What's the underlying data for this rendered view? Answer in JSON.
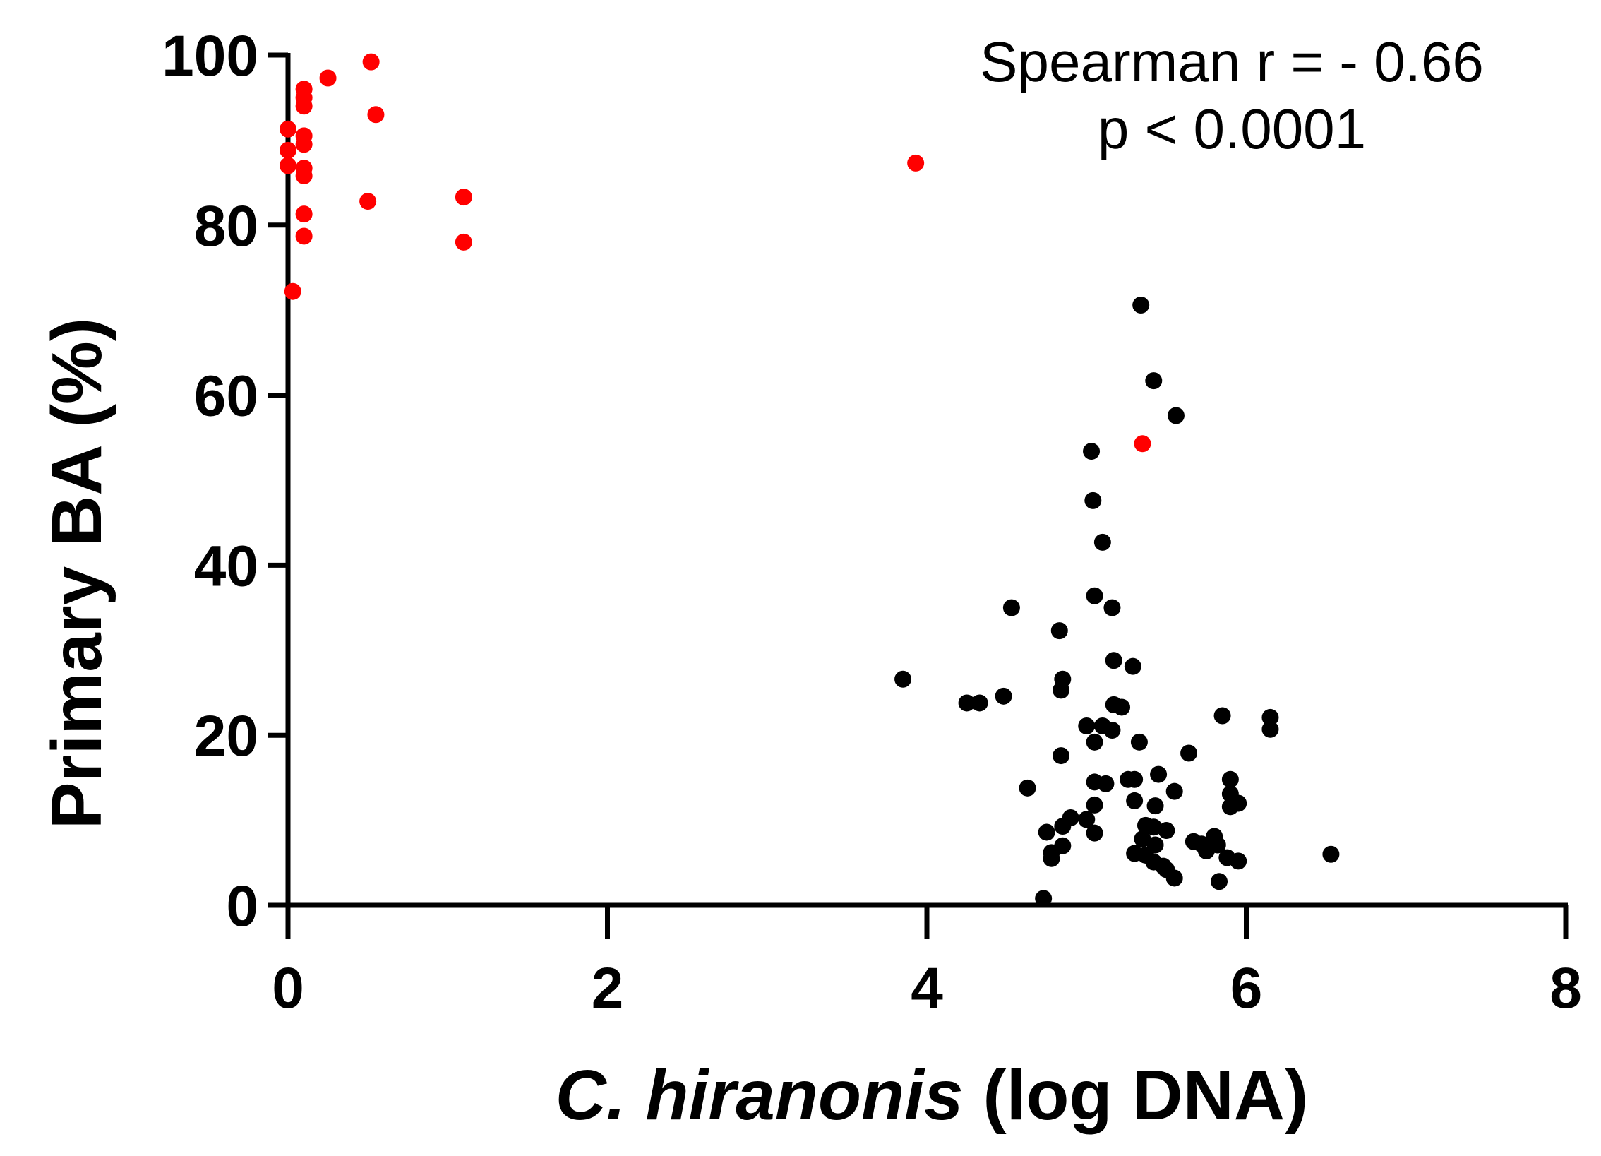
{
  "chart_data": {
    "type": "scatter",
    "title": "",
    "xlabel_italic": "C. hiranonis",
    "xlabel_rest": " (log DNA)",
    "ylabel": "Primary BA (%)",
    "xlim": [
      0,
      8
    ],
    "ylim": [
      0,
      100
    ],
    "xticks": [
      0,
      2,
      4,
      6,
      8
    ],
    "yticks": [
      0,
      20,
      40,
      60,
      80,
      100
    ],
    "grid": false,
    "colors": {
      "axis": "#000000",
      "red_series": "#ff0000",
      "black_series": "#000000"
    },
    "annotation": {
      "line1": "Spearman r = - 0.66",
      "line2": "p < 0.0001"
    },
    "series": [
      {
        "name": "red",
        "color": "#ff0000",
        "points": [
          [
            0.52,
            99.2
          ],
          [
            0.1,
            96.0
          ],
          [
            0.25,
            97.3
          ],
          [
            0.1,
            95.0
          ],
          [
            0.1,
            94.0
          ],
          [
            0.55,
            93.0
          ],
          [
            0.0,
            91.3
          ],
          [
            0.1,
            90.5
          ],
          [
            0.1,
            89.5
          ],
          [
            0.0,
            88.8
          ],
          [
            0.0,
            87.0
          ],
          [
            0.1,
            86.7
          ],
          [
            0.1,
            85.8
          ],
          [
            1.1,
            83.3
          ],
          [
            0.5,
            82.8
          ],
          [
            0.1,
            81.3
          ],
          [
            0.1,
            78.7
          ],
          [
            1.1,
            78.0
          ],
          [
            0.03,
            72.2
          ],
          [
            3.93,
            87.3
          ],
          [
            5.35,
            54.3
          ]
        ]
      },
      {
        "name": "black",
        "color": "#000000",
        "points": [
          [
            5.34,
            70.6
          ],
          [
            5.42,
            61.7
          ],
          [
            5.56,
            57.6
          ],
          [
            5.03,
            53.4
          ],
          [
            5.04,
            47.6
          ],
          [
            5.1,
            42.7
          ],
          [
            5.05,
            36.4
          ],
          [
            4.53,
            35.0
          ],
          [
            5.16,
            35.0
          ],
          [
            4.83,
            32.3
          ],
          [
            5.17,
            28.8
          ],
          [
            5.29,
            28.1
          ],
          [
            3.85,
            26.6
          ],
          [
            4.85,
            26.6
          ],
          [
            4.84,
            25.3
          ],
          [
            4.48,
            24.6
          ],
          [
            4.25,
            23.8
          ],
          [
            4.33,
            23.8
          ],
          [
            5.17,
            23.6
          ],
          [
            5.22,
            23.3
          ],
          [
            5.85,
            22.3
          ],
          [
            6.15,
            22.1
          ],
          [
            6.15,
            20.7
          ],
          [
            5.0,
            21.1
          ],
          [
            5.1,
            21.1
          ],
          [
            5.16,
            20.6
          ],
          [
            5.33,
            19.2
          ],
          [
            5.05,
            19.2
          ],
          [
            5.64,
            17.9
          ],
          [
            4.84,
            17.6
          ],
          [
            5.45,
            15.4
          ],
          [
            5.26,
            14.8
          ],
          [
            5.3,
            14.8
          ],
          [
            5.9,
            14.8
          ],
          [
            5.05,
            14.5
          ],
          [
            5.12,
            14.3
          ],
          [
            4.63,
            13.8
          ],
          [
            5.55,
            13.4
          ],
          [
            5.9,
            13.1
          ],
          [
            5.3,
            12.3
          ],
          [
            5.95,
            12.0
          ],
          [
            5.05,
            11.8
          ],
          [
            5.43,
            11.7
          ],
          [
            5.9,
            11.6
          ],
          [
            4.9,
            10.3
          ],
          [
            5.0,
            10.1
          ],
          [
            5.37,
            9.4
          ],
          [
            5.42,
            9.2
          ],
          [
            5.5,
            8.8
          ],
          [
            4.75,
            8.6
          ],
          [
            4.85,
            9.3
          ],
          [
            5.05,
            8.5
          ],
          [
            5.8,
            8.1
          ],
          [
            5.35,
            7.8
          ],
          [
            5.67,
            7.5
          ],
          [
            5.72,
            7.2
          ],
          [
            5.82,
            7.1
          ],
          [
            5.43,
            7.1
          ],
          [
            4.85,
            7.0
          ],
          [
            5.75,
            6.4
          ],
          [
            5.3,
            6.1
          ],
          [
            4.78,
            6.2
          ],
          [
            5.37,
            5.9
          ],
          [
            6.53,
            6.0
          ],
          [
            5.88,
            5.6
          ],
          [
            4.78,
            5.5
          ],
          [
            5.95,
            5.2
          ],
          [
            5.42,
            5.1
          ],
          [
            5.48,
            4.6
          ],
          [
            5.5,
            4.2
          ],
          [
            5.55,
            3.2
          ],
          [
            5.83,
            2.8
          ],
          [
            4.73,
            0.8
          ]
        ]
      }
    ]
  }
}
